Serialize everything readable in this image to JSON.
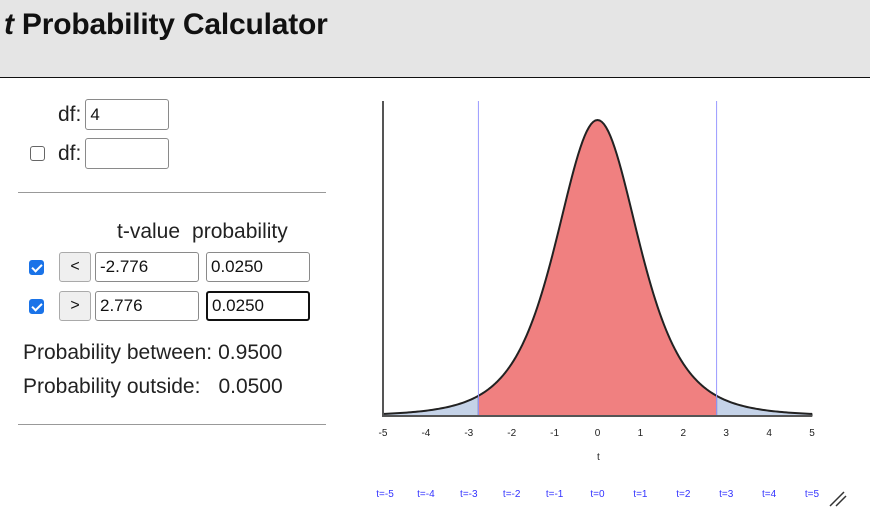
{
  "header": {
    "title_italic": "t",
    "title_rest": " Probability Calculator"
  },
  "df_inputs": [
    {
      "label": "df:",
      "value": "4",
      "has_checkbox": false
    },
    {
      "label": "df:",
      "value": "",
      "has_checkbox": true,
      "checked": false
    }
  ],
  "table": {
    "headers": {
      "tvalue": "t-value",
      "probability": "probability"
    },
    "rows": [
      {
        "checked": true,
        "op": "<",
        "tvalue": "-2.776",
        "probability": "0.0250"
      },
      {
        "checked": true,
        "op": ">",
        "tvalue": "2.776",
        "probability": "0.0250"
      }
    ]
  },
  "results": {
    "between_label": "Probability between:",
    "between_value": "0.9500",
    "outside_label": "Probability outside:",
    "outside_value": "0.0500"
  },
  "chart": {
    "xlabel": "t",
    "ticks": [
      "-5",
      "-4",
      "-3",
      "-2",
      "-1",
      "0",
      "1",
      "2",
      "3",
      "4",
      "5"
    ],
    "links": [
      "t=-5",
      "t=-4",
      "t=-3",
      "t=-2",
      "t=-1",
      "t=0",
      "t=1",
      "t=2",
      "t=3",
      "t=4",
      "t=5"
    ],
    "colors": {
      "center": "#f08080",
      "tails": "#c5d3e8",
      "cutoff": "#9999ff",
      "curve": "#222222"
    }
  },
  "chart_data": {
    "type": "area",
    "title": "t distribution (df = 4)",
    "xlabel": "t",
    "ylabel": "",
    "xlim": [
      -5,
      5
    ],
    "df": 4,
    "cutoffs": [
      -2.776,
      2.776
    ],
    "regions": [
      {
        "name": "left tail",
        "from": -5,
        "to": -2.776,
        "probability": 0.025,
        "color": "#c5d3e8"
      },
      {
        "name": "center",
        "from": -2.776,
        "to": 2.776,
        "probability": 0.95,
        "color": "#f08080"
      },
      {
        "name": "right tail",
        "from": 2.776,
        "to": 5,
        "probability": 0.025,
        "color": "#c5d3e8"
      }
    ]
  }
}
